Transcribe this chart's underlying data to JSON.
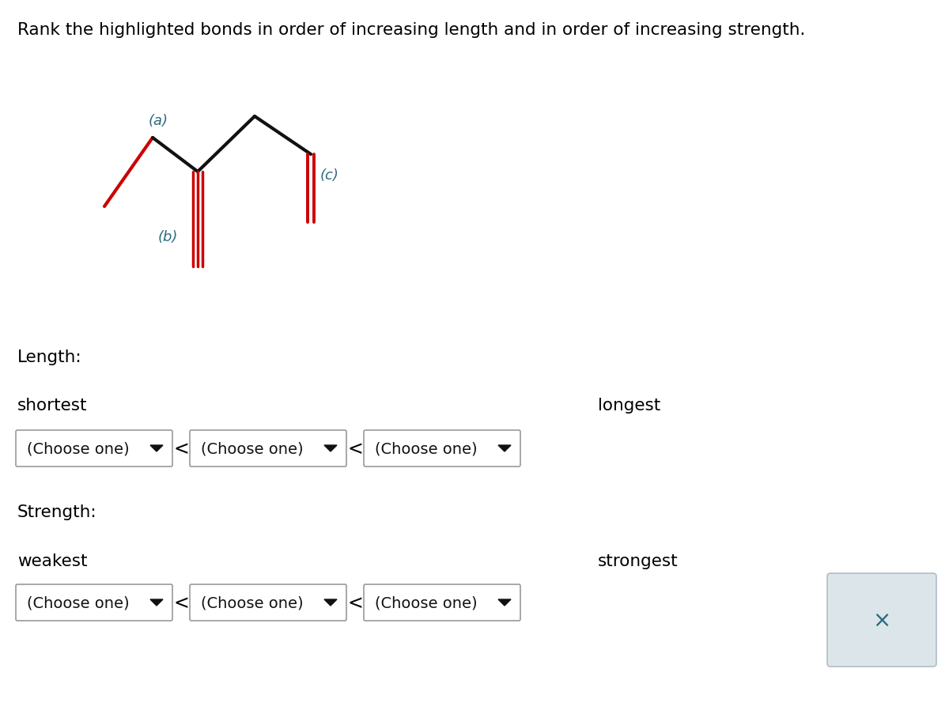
{
  "title": "Rank the highlighted bonds in order of increasing length and in order of increasing strength.",
  "title_color": "#000000",
  "title_fontsize": 15.5,
  "background_color": "#ffffff",
  "bond_color_red": "#cc0000",
  "bond_color_black": "#111111",
  "label_color_dark_teal": "#2e6b7e",
  "length_label": "Length:",
  "strength_label": "Strength:",
  "shortest_label": "shortest",
  "longest_label": "longest",
  "weakest_label": "weakest",
  "strongest_label": "strongest",
  "choose_one_text": "(Choose one)",
  "less_than": "<",
  "x_button": "×",
  "mol_lw": 3.0,
  "mol_lw_triple": 2.5,
  "mol_lw_double": 2.8
}
